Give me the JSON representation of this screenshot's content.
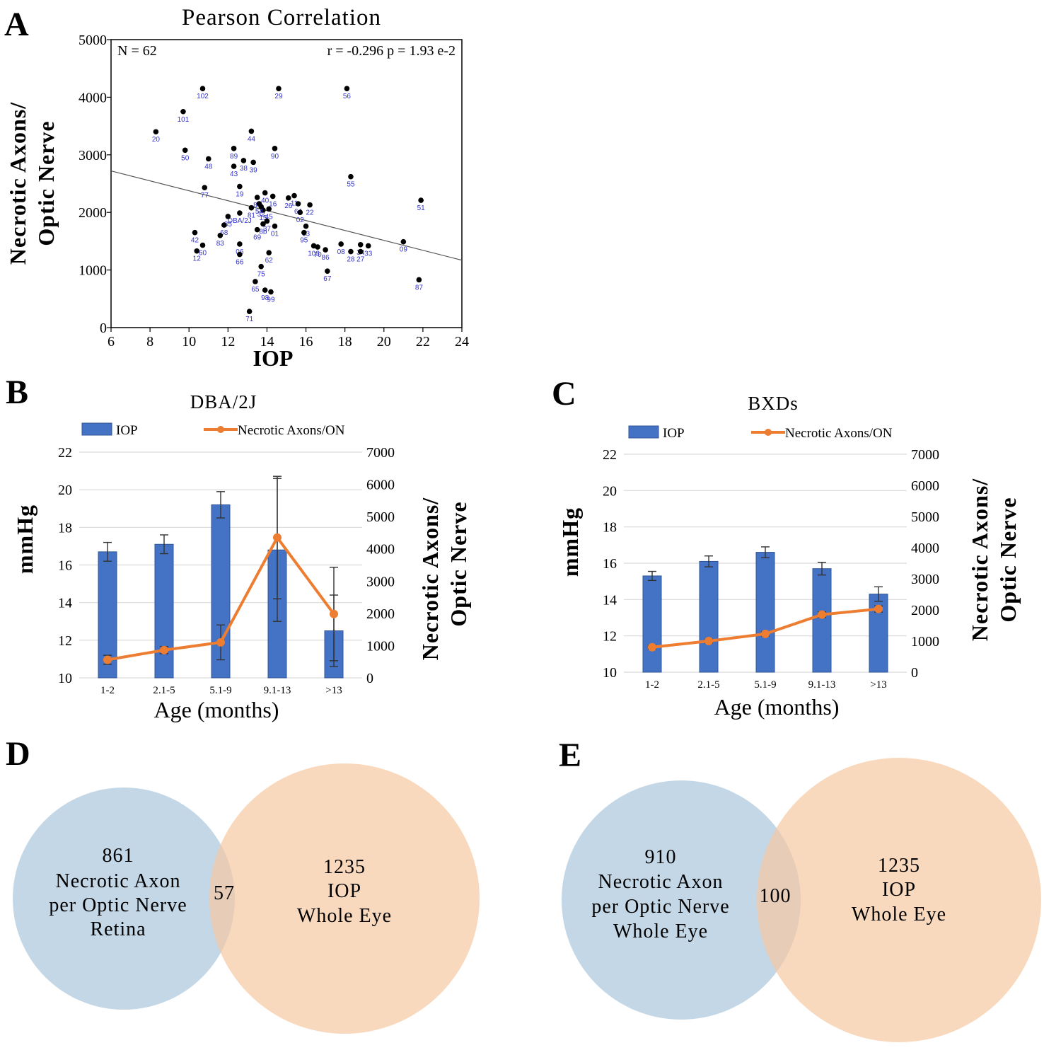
{
  "panels": {
    "A": {
      "label": "A"
    },
    "B": {
      "label": "B"
    },
    "C": {
      "label": "C"
    },
    "D": {
      "label": "D"
    },
    "E": {
      "label": "E"
    }
  },
  "colors": {
    "bar": "#4472c4",
    "bar_edge": "#2f5597",
    "line": "#ed7d31",
    "point": "#000000",
    "point_label": "#3333cc",
    "venn_left": "#a9c6dc",
    "venn_right": "#f7c9a2",
    "grid": "#d9d9d9"
  },
  "chart_data": [
    {
      "id": "A",
      "type": "scatter",
      "title": "Pearson Correlation",
      "xlabel": "IOP",
      "ylabel_line1": "Necrotic Axons/",
      "ylabel_line2": "Optic Nerve",
      "xlim": [
        6,
        24
      ],
      "ylim": [
        0,
        5000
      ],
      "xticks": [
        6,
        8,
        10,
        12,
        14,
        16,
        18,
        20,
        22,
        24
      ],
      "yticks": [
        0,
        1000,
        2000,
        3000,
        4000,
        5000
      ],
      "n_text": "N = 62",
      "stats_text": "r = -0.296 p = 1.93 e-2",
      "regression": {
        "x": [
          6,
          24
        ],
        "y": [
          2720,
          1170
        ]
      },
      "points": [
        {
          "x": 8.3,
          "y": 3400,
          "label": "20"
        },
        {
          "x": 9.7,
          "y": 3750,
          "label": "101"
        },
        {
          "x": 10.7,
          "y": 4150,
          "label": "102"
        },
        {
          "x": 9.8,
          "y": 3080,
          "label": "50"
        },
        {
          "x": 11.0,
          "y": 2930,
          "label": "48"
        },
        {
          "x": 10.8,
          "y": 2430,
          "label": "77"
        },
        {
          "x": 10.3,
          "y": 1650,
          "label": "42"
        },
        {
          "x": 10.7,
          "y": 1430,
          "label": "60"
        },
        {
          "x": 10.4,
          "y": 1330,
          "label": "12"
        },
        {
          "x": 12.3,
          "y": 3110,
          "label": "89"
        },
        {
          "x": 12.3,
          "y": 2800,
          "label": "43"
        },
        {
          "x": 12.8,
          "y": 2900,
          "label": "38"
        },
        {
          "x": 13.3,
          "y": 2870,
          "label": "39"
        },
        {
          "x": 13.2,
          "y": 3410,
          "label": "44"
        },
        {
          "x": 14.6,
          "y": 4150,
          "label": "29"
        },
        {
          "x": 14.4,
          "y": 3110,
          "label": "90"
        },
        {
          "x": 18.1,
          "y": 4150,
          "label": "56"
        },
        {
          "x": 18.3,
          "y": 2620,
          "label": "55"
        },
        {
          "x": 12.6,
          "y": 2450,
          "label": "19"
        },
        {
          "x": 21.9,
          "y": 2210,
          "label": "51"
        },
        {
          "x": 21.8,
          "y": 830,
          "label": "87"
        },
        {
          "x": 21.0,
          "y": 1490,
          "label": "09"
        },
        {
          "x": 12.6,
          "y": 1990,
          "label": "DBA/2J"
        },
        {
          "x": 12.0,
          "y": 1930,
          "label": "85"
        },
        {
          "x": 11.8,
          "y": 1780,
          "label": "68"
        },
        {
          "x": 11.6,
          "y": 1600,
          "label": "83"
        },
        {
          "x": 12.6,
          "y": 1450,
          "label": "06"
        },
        {
          "x": 12.6,
          "y": 1270,
          "label": "66"
        },
        {
          "x": 13.5,
          "y": 2260,
          "label": "84"
        },
        {
          "x": 13.9,
          "y": 2340,
          "label": "40"
        },
        {
          "x": 13.7,
          "y": 2100,
          "label": "32"
        },
        {
          "x": 13.8,
          "y": 2040,
          "label": "15"
        },
        {
          "x": 14.1,
          "y": 2060,
          "label": "45"
        },
        {
          "x": 14.3,
          "y": 2280,
          "label": "16"
        },
        {
          "x": 13.8,
          "y": 1800,
          "label": "8b"
        },
        {
          "x": 13.5,
          "y": 1700,
          "label": "69"
        },
        {
          "x": 14.4,
          "y": 1760,
          "label": "01"
        },
        {
          "x": 15.4,
          "y": 2290,
          "label": "11"
        },
        {
          "x": 15.6,
          "y": 2150,
          "label": "64"
        },
        {
          "x": 16.2,
          "y": 2130,
          "label": "22"
        },
        {
          "x": 15.7,
          "y": 2000,
          "label": "02"
        },
        {
          "x": 16.0,
          "y": 1760,
          "label": "63"
        },
        {
          "x": 15.9,
          "y": 1650,
          "label": "95"
        },
        {
          "x": 14.1,
          "y": 1300,
          "label": "62"
        },
        {
          "x": 13.7,
          "y": 1060,
          "label": "75"
        },
        {
          "x": 13.4,
          "y": 800,
          "label": "65"
        },
        {
          "x": 13.9,
          "y": 650,
          "label": "98"
        },
        {
          "x": 14.2,
          "y": 620,
          "label": "99"
        },
        {
          "x": 13.1,
          "y": 280,
          "label": "71"
        },
        {
          "x": 16.4,
          "y": 1420,
          "label": "103"
        },
        {
          "x": 16.6,
          "y": 1400,
          "label": "70"
        },
        {
          "x": 17.0,
          "y": 1350,
          "label": "86"
        },
        {
          "x": 17.1,
          "y": 980,
          "label": "67"
        },
        {
          "x": 17.8,
          "y": 1450,
          "label": "08"
        },
        {
          "x": 18.3,
          "y": 1320,
          "label": "28"
        },
        {
          "x": 18.8,
          "y": 1440,
          "label": "34"
        },
        {
          "x": 18.8,
          "y": 1320,
          "label": "27"
        },
        {
          "x": 19.2,
          "y": 1420,
          "label": "33"
        },
        {
          "x": 13.6,
          "y": 2150,
          "label": "54"
        },
        {
          "x": 14.0,
          "y": 1850,
          "label": "37"
        },
        {
          "x": 13.2,
          "y": 2080,
          "label": "81"
        },
        {
          "x": 15.1,
          "y": 2250,
          "label": "26"
        }
      ]
    },
    {
      "id": "B",
      "type": "bar",
      "title": "DBA/2J",
      "xlabel": "Age (months)",
      "ylabel": "mmHg",
      "ylabel2_line1": "Necrotic Axons/",
      "ylabel2_line2": "Optic Nerve",
      "categories": [
        "1-2",
        "2.1-5",
        "5.1-9",
        "9.1-13",
        ">13"
      ],
      "ylim": [
        10,
        22
      ],
      "yticks": [
        10,
        12,
        14,
        16,
        18,
        20,
        22
      ],
      "y2lim": [
        0,
        7000
      ],
      "y2ticks": [
        0,
        1000,
        2000,
        3000,
        4000,
        5000,
        6000,
        7000
      ],
      "legend": {
        "bar": "IOP",
        "line": "Necrotic Axons/ON"
      },
      "series": [
        {
          "name": "IOP",
          "axis": "left",
          "values": [
            16.7,
            17.1,
            19.2,
            16.8,
            12.5
          ],
          "errors": [
            0.5,
            0.5,
            0.7,
            3.8,
            1.9
          ]
        },
        {
          "name": "Necrotic Axons/ON",
          "axis": "right",
          "values": [
            560,
            860,
            1100,
            4350,
            1980
          ],
          "errors": [
            140,
            110,
            540,
            1900,
            1450
          ]
        }
      ]
    },
    {
      "id": "C",
      "type": "bar",
      "title": "BXDs",
      "xlabel": "Age (months)",
      "ylabel": "mmHg",
      "ylabel2_line1": "Necrotic Axons/",
      "ylabel2_line2": "Optic Nerve",
      "categories": [
        "1-2",
        "2.1-5",
        "5.1-9",
        "9.1-13",
        ">13"
      ],
      "ylim": [
        10,
        22
      ],
      "yticks": [
        10,
        12,
        14,
        16,
        18,
        20,
        22
      ],
      "y2lim": [
        0,
        7000
      ],
      "y2ticks": [
        0,
        1000,
        2000,
        3000,
        4000,
        5000,
        6000,
        7000
      ],
      "legend": {
        "bar": "IOP",
        "line": "Necrotic Axons/ON"
      },
      "series": [
        {
          "name": "IOP",
          "axis": "left",
          "values": [
            15.3,
            16.1,
            16.6,
            15.7,
            14.3
          ],
          "errors": [
            0.25,
            0.3,
            0.3,
            0.35,
            0.4
          ]
        },
        {
          "name": "Necrotic Axons/ON",
          "axis": "right",
          "values": [
            800,
            1000,
            1230,
            1850,
            2030
          ],
          "errors": [
            60,
            60,
            70,
            90,
            100
          ]
        }
      ]
    }
  ],
  "venn": {
    "D": {
      "left_count": "861",
      "left_line1": "Necrotic Axon",
      "left_line2": "per Optic Nerve",
      "left_line3": "Retina",
      "overlap": "57",
      "right_count": "1235",
      "right_line1": "IOP",
      "right_line2": "Whole Eye"
    },
    "E": {
      "left_count": "910",
      "left_line1": "Necrotic Axon",
      "left_line2": "per Optic Nerve",
      "left_line3": "Whole Eye",
      "overlap": "100",
      "right_count": "1235",
      "right_line1": "IOP",
      "right_line2": "Whole Eye"
    }
  }
}
